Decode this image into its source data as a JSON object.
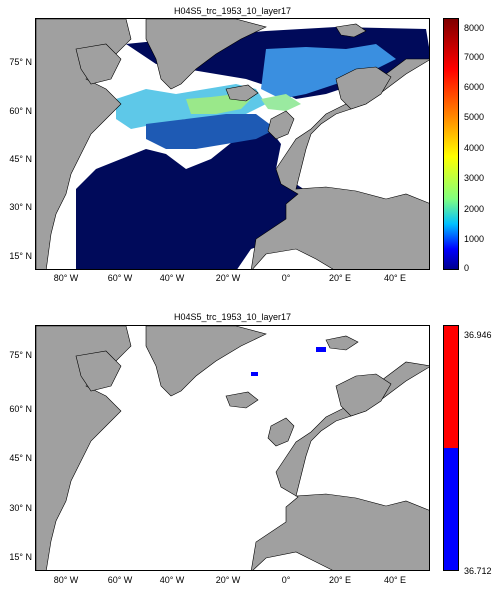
{
  "top_map": {
    "title": "H04S5_trc_1953_10_layer17",
    "y_labels": [
      "75° N",
      "60° N",
      "45° N",
      "30° N",
      "15° N"
    ],
    "x_labels": [
      "80° W",
      "60° W",
      "40° W",
      "20° W",
      "0°",
      "20° E",
      "40° E"
    ],
    "colorbar": {
      "ticks": [
        "8000",
        "7000",
        "6000",
        "5000",
        "4000",
        "3000",
        "2000",
        "1000",
        "0"
      ],
      "colors": [
        "#7f0000",
        "#ff0000",
        "#ff8000",
        "#ffff00",
        "#80ff80",
        "#00c0ff",
        "#0000ff",
        "#00008f"
      ]
    }
  },
  "bottom_map": {
    "title": "H04S5_trc_1953_10_layer17",
    "y_labels": [
      "75° N",
      "60° N",
      "45° N",
      "30° N",
      "15° N"
    ],
    "x_labels": [
      "80° W",
      "60° W",
      "40° W",
      "20° W",
      "0°",
      "20° E",
      "40° E"
    ],
    "colorbar": {
      "max_label": "36.946",
      "min_label": "36.712",
      "colors": [
        "#ff0000",
        "#0000ff"
      ]
    }
  },
  "colors": {
    "land": "#a0a0a0",
    "deep_ocean": "#000a5a",
    "ocean_white": "#ffffff"
  }
}
